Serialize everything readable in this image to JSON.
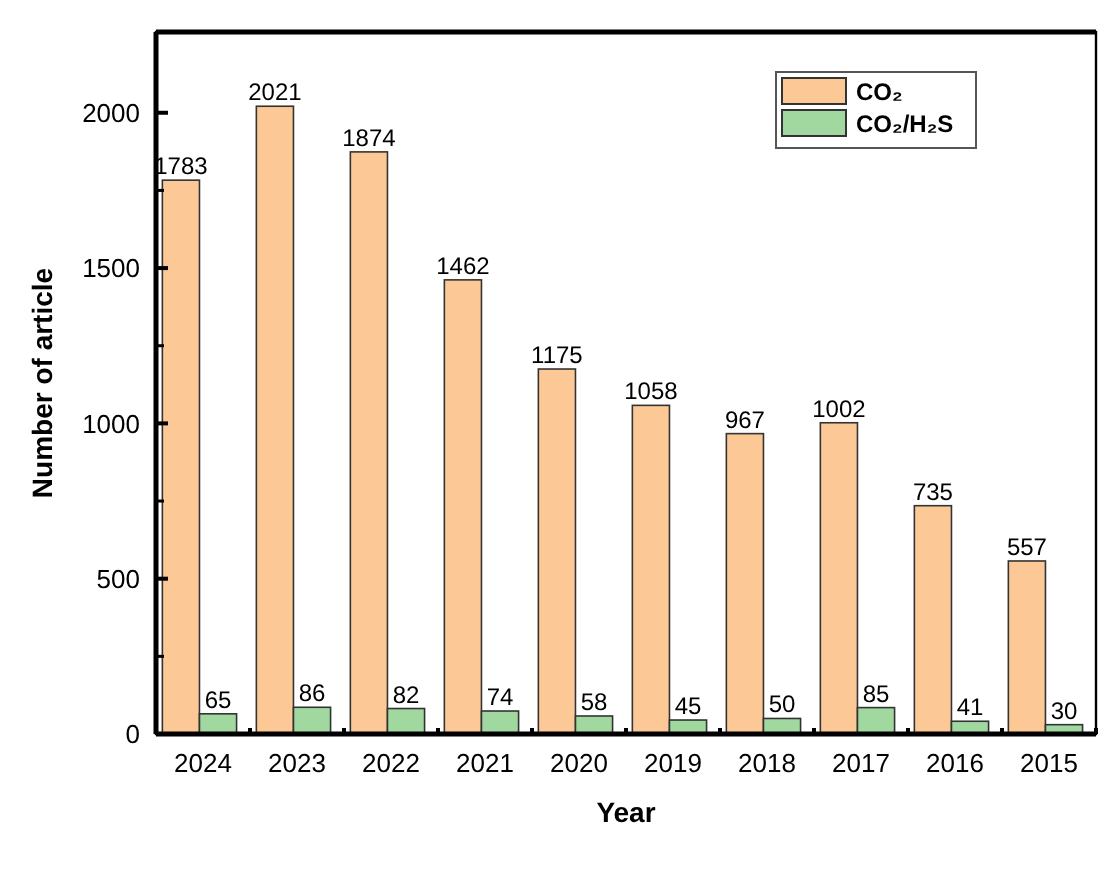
{
  "chart_data": {
    "type": "bar",
    "xlabel": "Year",
    "ylabel": "Number of article",
    "categories": [
      "2024",
      "2023",
      "2022",
      "2021",
      "2020",
      "2019",
      "2018",
      "2017",
      "2016",
      "2015"
    ],
    "series": [
      {
        "name": "CO₂",
        "color": "#fcc896",
        "values": [
          1783,
          2021,
          1874,
          1462,
          1175,
          1058,
          967,
          1002,
          735,
          557
        ]
      },
      {
        "name": "CO₂/H₂S",
        "color": "#a0d8a0",
        "values": [
          65,
          86,
          82,
          74,
          58,
          45,
          50,
          85,
          41,
          30
        ]
      }
    ],
    "ylim": [
      0,
      2260
    ],
    "yticks": [
      0,
      500,
      1000,
      1500,
      2000
    ],
    "data_labels": true,
    "legend": "top right",
    "grid": false
  }
}
